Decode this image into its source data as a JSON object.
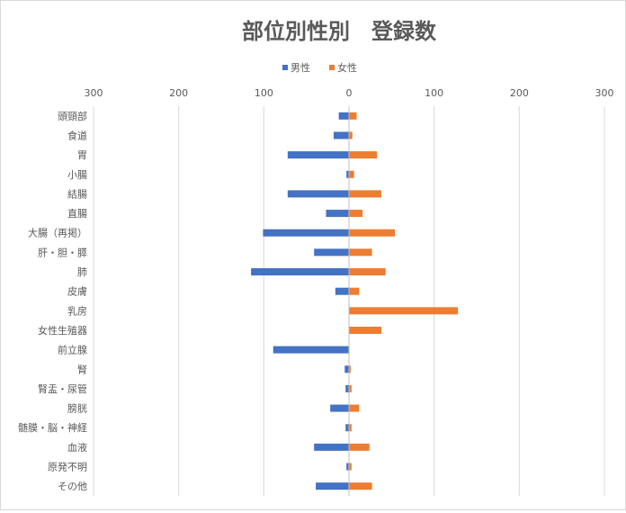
{
  "chart_data": {
    "type": "bar",
    "orientation": "horizontal",
    "title": "部位別性別　登録数",
    "xlim": [
      -300,
      300
    ],
    "x_ticks": [
      -300,
      -200,
      -100,
      0,
      100,
      200,
      300
    ],
    "x_tick_labels": [
      "300",
      "200",
      "100",
      "0",
      "100",
      "200",
      "300"
    ],
    "axis_position": "top",
    "grid": true,
    "legend_position": "top",
    "categories": [
      "頭頸部",
      "食道",
      "胃",
      "小腸",
      "結腸",
      "直腸",
      "大腸（再掲）",
      "肝・胆・膵",
      "肺",
      "皮膚",
      "乳房",
      "女性生殖器",
      "前立腺",
      "腎",
      "腎盂・尿管",
      "膀胱",
      "髄膜・脳・神経",
      "血液",
      "原発不明",
      "その他"
    ],
    "series": [
      {
        "name": "男性",
        "color": "#4472c4",
        "values": [
          -12,
          -18,
          -72,
          -3,
          -72,
          -27,
          -101,
          -41,
          -115,
          -16,
          0,
          0,
          -89,
          -5,
          -4,
          -22,
          -4,
          -41,
          -3,
          -39
        ]
      },
      {
        "name": "女性",
        "color": "#ed7d31",
        "values": [
          9,
          4,
          33,
          6,
          38,
          16,
          54,
          27,
          43,
          12,
          128,
          38,
          0,
          2,
          3,
          12,
          3,
          24,
          3,
          27
        ]
      }
    ]
  }
}
